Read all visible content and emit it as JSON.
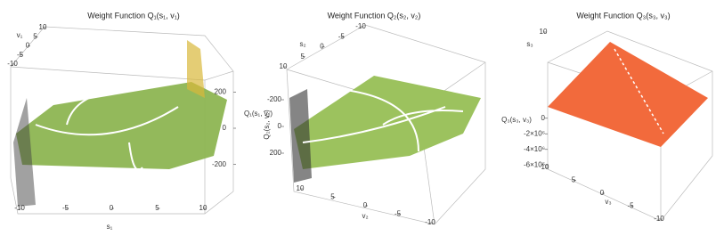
{
  "chart_data": [
    {
      "type": "surface3d",
      "title": "Weight Function Q₁(s₁, v₁)",
      "xlabel": "s₁",
      "ylabel": "v₁",
      "zlabel": "Q₁(s₁, v₁)",
      "xlim": [
        -10,
        10
      ],
      "xticks": [
        -10,
        -5,
        0,
        5,
        10
      ],
      "ylim": [
        -10,
        10
      ],
      "yticks": [
        -10,
        -5,
        0,
        5,
        10
      ],
      "zlim": [
        -300,
        300
      ],
      "zticks": [
        -200,
        0,
        200
      ],
      "color": "#8db552"
    },
    {
      "type": "surface3d",
      "title": "Weight Function Q₂(s₂, v₂)",
      "xlabel": "v₂",
      "ylabel": "s₂",
      "zlabel": "Q₂(s₂, v₂)",
      "xlim": [
        -10,
        10
      ],
      "xticks": [
        -10,
        -5,
        0,
        5,
        10
      ],
      "ylim": [
        -10,
        10
      ],
      "yticks": [
        -10,
        -5,
        0,
        5,
        10
      ],
      "zlim": [
        -300,
        300
      ],
      "zticks": [
        -200,
        0,
        200
      ],
      "color": "#9cc25e"
    },
    {
      "type": "surface3d",
      "title": "Weight Function Q₃(s₃, v₃)",
      "xlabel": "v₃",
      "ylabel": "s₃",
      "zlabel": "Q₃(s₃, v₃)",
      "xlim": [
        -10,
        10
      ],
      "xticks": [
        -10,
        -5,
        0,
        5,
        10
      ],
      "ylim": [
        -10,
        10
      ],
      "yticks": [
        10
      ],
      "zlim": [
        -7000000,
        1000000
      ],
      "zticks": [
        {
          "value": -6000000,
          "label": "-6×10⁶"
        },
        {
          "value": -4000000,
          "label": "-4×10⁶"
        },
        {
          "value": -2000000,
          "label": "-2×10⁶"
        },
        0
      ],
      "color": "#f26a3c"
    }
  ]
}
